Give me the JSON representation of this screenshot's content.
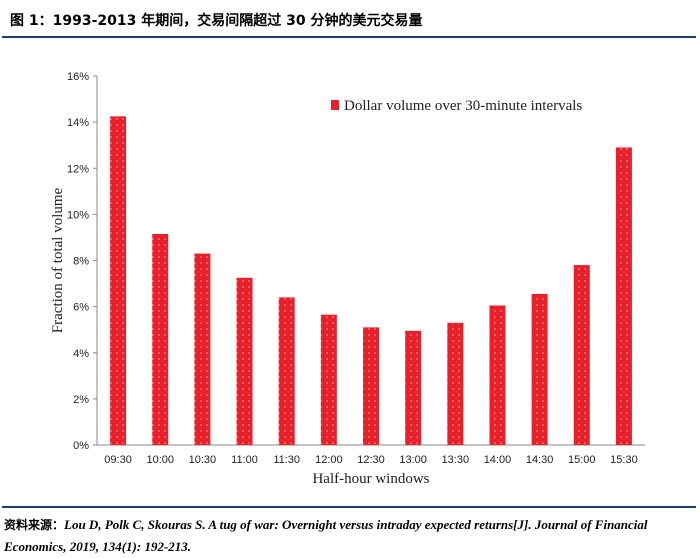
{
  "header": {
    "title": "图 1：1993-2013 年期间，交易间隔超过 30 分钟的美元交易量"
  },
  "chart_data": {
    "type": "bar",
    "categories": [
      "09:30",
      "10:00",
      "10:30",
      "11:00",
      "11:30",
      "12:00",
      "12:30",
      "13:00",
      "13:30",
      "14:00",
      "14:30",
      "15:00",
      "15:30"
    ],
    "series": [
      {
        "name": "Dollar volume over 30-minute intervals",
        "values": [
          14.25,
          9.15,
          8.3,
          7.25,
          6.4,
          5.65,
          5.1,
          4.95,
          5.3,
          6.05,
          6.55,
          7.8,
          12.9
        ],
        "color": "#e8202a"
      }
    ],
    "xlabel": "Half-hour windows",
    "ylabel": "Fraction of total volume",
    "ylim": [
      0,
      16
    ],
    "yticks": [
      0,
      2,
      4,
      6,
      8,
      10,
      12,
      14,
      16
    ],
    "ytick_labels": [
      "0%",
      "2%",
      "4%",
      "6%",
      "8%",
      "10%",
      "12%",
      "14%",
      "16%"
    ],
    "grid": false,
    "legend_position": "top-right"
  },
  "footer": {
    "source_label": "资料来源：",
    "source_text": "Lou D, Polk C, Skouras S. A tug of war: Overnight versus intraday expected returns[J]. Journal of Financial Economics, 2019, 134(1): 192-213."
  }
}
